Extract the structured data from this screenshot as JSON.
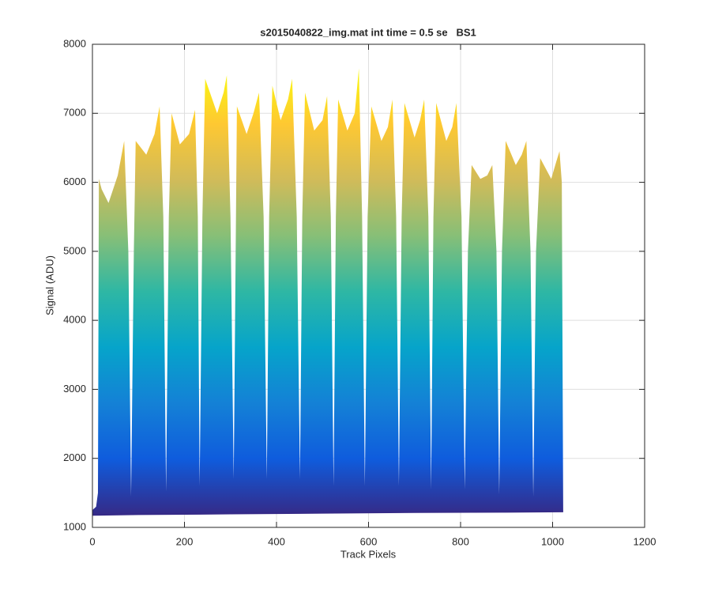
{
  "chart_data": {
    "type": "area",
    "title": "s2015040822_img.mat int time = 0.5 se   BS1",
    "x_label": "Track Pixels",
    "y_label": "Signal (ADU)",
    "xlim": [
      0,
      1200
    ],
    "xticks": [
      0,
      200,
      400,
      600,
      800,
      1000,
      1200
    ],
    "ylim": [
      1000,
      8000
    ],
    "yticks": [
      1000,
      2000,
      3000,
      4000,
      5000,
      6000,
      7000,
      8000
    ],
    "grid": true,
    "colormap": [
      "#352a87",
      "#0f5cdd",
      "#1481d6",
      "#06a4ca",
      "#2eb7a4",
      "#87bf77",
      "#d1bb59",
      "#fec832",
      "#f9fb0e"
    ],
    "series": [
      {
        "x": [
          0,
          8,
          12,
          14,
          20,
          35,
          55,
          69,
          78,
          84,
          90,
          94,
          117,
          135,
          146,
          154,
          160,
          166,
          172,
          190,
          210,
          223,
          229,
          233,
          239,
          245,
          271,
          285,
          292,
          300,
          307,
          310,
          314,
          335,
          350,
          362,
          372,
          379,
          384,
          391,
          409,
          425,
          434,
          444,
          451,
          456,
          462,
          482,
          500,
          510,
          518,
          524,
          529,
          534,
          554,
          570,
          579,
          586,
          592,
          598,
          606,
          628,
          642,
          652,
          660,
          666,
          672,
          678,
          700,
          712,
          721,
          730,
          736,
          741,
          747,
          769,
          782,
          791,
          802,
          809,
          816,
          824,
          843,
          858,
          869,
          878,
          884,
          890,
          898,
          920,
          933,
          943,
          952,
          958,
          964,
          973,
          997,
          1008,
          1015,
          1020,
          1023
        ],
        "values": [
          1250,
          1300,
          1500,
          6050,
          5900,
          5700,
          6100,
          6600,
          5000,
          1450,
          5000,
          6600,
          6400,
          6700,
          7100,
          5500,
          1520,
          5500,
          7000,
          6550,
          6700,
          7050,
          5500,
          1600,
          5500,
          7500,
          7000,
          7300,
          7550,
          5500,
          1700,
          4000,
          7100,
          6700,
          7000,
          7300,
          5500,
          1700,
          5500,
          7400,
          6900,
          7200,
          7500,
          5500,
          1700,
          5500,
          7300,
          6750,
          6900,
          7250,
          5500,
          1600,
          5500,
          7200,
          6750,
          7000,
          7650,
          5500,
          1600,
          5500,
          7100,
          6600,
          6800,
          7200,
          5500,
          1600,
          5500,
          7150,
          6650,
          6900,
          7200,
          5500,
          1550,
          5500,
          7150,
          6600,
          6800,
          7150,
          5500,
          1550,
          5000,
          6250,
          6050,
          6100,
          6250,
          5000,
          1480,
          5000,
          6600,
          6250,
          6400,
          6600,
          5000,
          1450,
          5000,
          6350,
          6050,
          6300,
          6450,
          6000,
          1250
        ]
      },
      {
        "x": [
          0,
          100,
          300,
          500,
          700,
          900,
          1023
        ],
        "values": [
          1180,
          1190,
          1200,
          1210,
          1220,
          1225,
          1230
        ]
      }
    ]
  }
}
